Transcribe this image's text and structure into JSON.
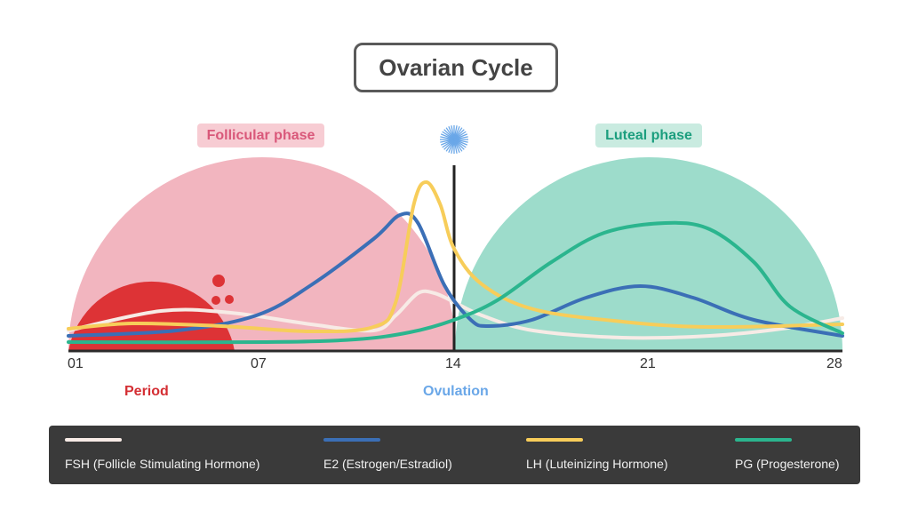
{
  "title": "Ovarian Cycle",
  "phases": {
    "follicular": {
      "label": "Follicular phase",
      "color": "#f2b5bf"
    },
    "luteal": {
      "label": "Luteal phase",
      "color": "#9ddccb"
    }
  },
  "markers": {
    "period": {
      "label": "Period",
      "color": "#d42e33"
    },
    "ovulation": {
      "label": "Ovulation",
      "color": "#6aa7e8",
      "icon": "sun-burst-icon",
      "day": 14
    }
  },
  "chart_data": {
    "type": "line",
    "title": "Ovarian Cycle",
    "xlabel": "",
    "ylabel": "",
    "x_ticks": [
      "01",
      "07",
      "14",
      "21",
      "28"
    ],
    "x_tick_values": [
      1,
      7,
      14,
      21,
      28
    ],
    "xlim": [
      1,
      28
    ],
    "ylim": [
      0,
      100
    ],
    "grid": false,
    "legend_placement": "bottom",
    "series": [
      {
        "name": "FSH (Follicle Stimulating Hormone)",
        "color": "#f7ebe6",
        "points": [
          [
            1,
            11.5
          ],
          [
            3.9,
            22.5
          ],
          [
            6.1,
            21.5
          ],
          [
            8.85,
            15
          ],
          [
            11.1,
            11.5
          ],
          [
            11.9,
            20
          ],
          [
            12.7,
            32.5
          ],
          [
            13.3,
            32.5
          ],
          [
            14,
            27.5
          ],
          [
            15,
            20
          ],
          [
            16.85,
            11.5
          ],
          [
            20.05,
            7.5
          ],
          [
            23.2,
            8.5
          ],
          [
            25.8,
            12.5
          ],
          [
            28,
            18.5
          ]
        ]
      },
      {
        "name": "E2 (Estrogen/Estradiol)",
        "color": "#3b6fb6",
        "points": [
          [
            1,
            8.5
          ],
          [
            4.4,
            11.5
          ],
          [
            6.9,
            20
          ],
          [
            8.85,
            37
          ],
          [
            11.1,
            63
          ],
          [
            12.05,
            76.5
          ],
          [
            12.7,
            72
          ],
          [
            13.65,
            37
          ],
          [
            14.6,
            17.5
          ],
          [
            15.25,
            14
          ],
          [
            16.8,
            17.5
          ],
          [
            18.75,
            30
          ],
          [
            20.7,
            36.5
          ],
          [
            22.6,
            30
          ],
          [
            24.8,
            17.5
          ],
          [
            28,
            8.5
          ]
        ]
      },
      {
        "name": "LH (Luteinizing Hormone)",
        "color": "#f7cd5a",
        "points": [
          [
            1,
            12.5
          ],
          [
            3,
            15.5
          ],
          [
            5.8,
            14
          ],
          [
            8.85,
            11
          ],
          [
            11.1,
            13.5
          ],
          [
            11.9,
            27.5
          ],
          [
            12.55,
            82.5
          ],
          [
            13,
            95
          ],
          [
            13.5,
            82.5
          ],
          [
            14,
            57.5
          ],
          [
            15,
            37.5
          ],
          [
            16.85,
            23.5
          ],
          [
            20.05,
            16.5
          ],
          [
            23.2,
            13.5
          ],
          [
            28,
            15
          ]
        ]
      },
      {
        "name": "PG (Progesterone)",
        "color": "#2bb58e",
        "points": [
          [
            1,
            5
          ],
          [
            7.25,
            5
          ],
          [
            10.45,
            6.5
          ],
          [
            12.4,
            10.5
          ],
          [
            14,
            17.5
          ],
          [
            15.55,
            28.5
          ],
          [
            17.5,
            50
          ],
          [
            19.4,
            66.5
          ],
          [
            21.6,
            72
          ],
          [
            23.2,
            68.5
          ],
          [
            24.8,
            50
          ],
          [
            26.1,
            25
          ],
          [
            28,
            10
          ]
        ]
      }
    ]
  }
}
